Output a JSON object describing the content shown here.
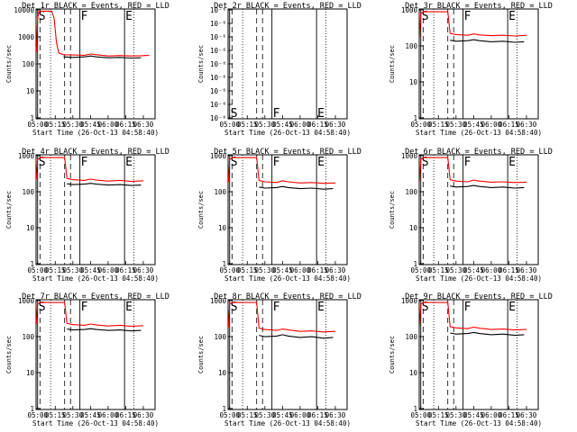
{
  "common": {
    "xlabel": "Start Time (26-Oct-13 04:58:40)",
    "ylabel": "Counts/sec",
    "black_series": "Events",
    "red_series": "LLD",
    "series_colors": {
      "events": "#000000",
      "lld": "#ff0000"
    },
    "markers": [
      {
        "label": "S",
        "time": "05:00"
      },
      {
        "label": "F",
        "time": "05:36"
      },
      {
        "label": "E",
        "time": "06:14"
      }
    ],
    "verticals": {
      "dotted": [
        "05:11",
        "06:22"
      ],
      "dashed": [
        "05:02",
        "05:23",
        "05:28"
      ]
    }
  },
  "chart_data": [
    {
      "title": "Det 1r BLACK = Events, RED = LLD",
      "type": "line",
      "yscale": "log",
      "ylim": [
        1,
        12000
      ],
      "yticks": [
        "1",
        "10",
        "100",
        "1000",
        "10000"
      ],
      "xticks": [
        "05:00",
        "05:15",
        "05:30",
        "05:45",
        "06:00",
        "06:15",
        "06:30"
      ],
      "red_x": [
        "04:59",
        "05:00",
        "05:01",
        "05:02",
        "05:05",
        "05:08",
        "05:12",
        "05:14",
        "05:16",
        "05:18",
        "05:22",
        "05:30",
        "05:40",
        "05:45",
        "05:50",
        "06:00",
        "06:10",
        "06:20",
        "06:28",
        "06:35"
      ],
      "red_y": [
        300,
        5000,
        9500,
        10000,
        10000,
        10000,
        10000,
        5500,
        700,
        280,
        240,
        235,
        230,
        255,
        240,
        215,
        225,
        215,
        220,
        230
      ],
      "black_x": [
        "05:22",
        "05:30",
        "05:40",
        "05:45",
        "05:50",
        "06:00",
        "06:10",
        "06:20",
        "06:28"
      ],
      "black_y": [
        200,
        190,
        200,
        215,
        200,
        185,
        190,
        180,
        185
      ]
    },
    {
      "title": "Det 2r BLACK = Events, RED = LLD",
      "type": "line",
      "yscale": "log",
      "ylim": [
        9e-07,
        1.2e-06
      ],
      "yticks": [
        "10⁻⁶",
        "10⁻⁶",
        "10⁻⁶",
        "10⁻⁶",
        "10⁻⁶",
        "10⁻⁶",
        "10⁻⁶",
        "10⁻⁶",
        "10⁻⁶"
      ],
      "xticks": [
        "05:00",
        "05:15",
        "05:30",
        "05:45",
        "06:00",
        "06:15",
        "06:30"
      ],
      "red_x": [],
      "red_y": [],
      "black_x": [],
      "black_y": []
    },
    {
      "title": "Det 3r BLACK = Events, RED = LLD",
      "type": "line",
      "yscale": "log",
      "ylim": [
        1,
        1200
      ],
      "yticks": [
        "1",
        "10",
        "100",
        "1000"
      ],
      "xticks": [
        "05:00",
        "05:15",
        "05:30",
        "05:45",
        "06:00",
        "06:15",
        "06:30"
      ],
      "red_x": [
        "04:59",
        "05:00",
        "05:02",
        "05:23",
        "05:25",
        "05:30",
        "05:40",
        "05:45",
        "05:50",
        "06:00",
        "06:10",
        "06:20",
        "06:30"
      ],
      "red_y": [
        200,
        900,
        1000,
        1000,
        250,
        230,
        220,
        240,
        225,
        215,
        220,
        210,
        220
      ],
      "black_x": [
        "05:25",
        "05:30",
        "05:40",
        "05:45",
        "05:50",
        "06:00",
        "06:10",
        "06:20",
        "06:28"
      ],
      "black_y": [
        160,
        150,
        155,
        165,
        155,
        145,
        150,
        140,
        145
      ]
    },
    {
      "title": "Det 4r BLACK = Events, RED = LLD",
      "type": "line",
      "yscale": "log",
      "ylim": [
        1,
        1200
      ],
      "yticks": [
        "1",
        "10",
        "100",
        "1000"
      ],
      "xticks": [
        "05:00",
        "05:15",
        "05:30",
        "05:45",
        "06:00",
        "06:15",
        "06:30"
      ],
      "red_x": [
        "04:59",
        "05:00",
        "05:02",
        "05:23",
        "05:25",
        "05:30",
        "05:40",
        "05:45",
        "05:50",
        "06:00",
        "06:10",
        "06:20",
        "06:30"
      ],
      "red_y": [
        250,
        900,
        1000,
        1000,
        260,
        240,
        230,
        250,
        235,
        220,
        230,
        215,
        225
      ],
      "black_x": [
        "05:25",
        "05:30",
        "05:40",
        "05:45",
        "05:50",
        "06:00",
        "06:10",
        "06:20",
        "06:28"
      ],
      "black_y": [
        185,
        175,
        180,
        190,
        180,
        170,
        175,
        165,
        170
      ]
    },
    {
      "title": "Det 5r BLACK = Events, RED = LLD",
      "type": "line",
      "yscale": "log",
      "ylim": [
        1,
        1200
      ],
      "yticks": [
        "1",
        "10",
        "100",
        "1000"
      ],
      "xticks": [
        "05:00",
        "05:15",
        "05:30",
        "05:45",
        "06:00",
        "06:15",
        "06:30"
      ],
      "red_x": [
        "04:59",
        "05:00",
        "05:02",
        "05:23",
        "05:25",
        "05:30",
        "05:40",
        "05:45",
        "05:50",
        "06:00",
        "06:10",
        "06:20",
        "06:30"
      ],
      "red_y": [
        200,
        900,
        1000,
        1000,
        230,
        210,
        200,
        225,
        210,
        195,
        200,
        190,
        195
      ],
      "black_x": [
        "05:25",
        "05:30",
        "05:40",
        "05:45",
        "05:50",
        "06:00",
        "06:10",
        "06:20",
        "06:28"
      ],
      "black_y": [
        150,
        140,
        145,
        155,
        145,
        135,
        140,
        130,
        135
      ]
    },
    {
      "title": "Det 6r BLACK = Events, RED = LLD",
      "type": "line",
      "yscale": "log",
      "ylim": [
        1,
        1200
      ],
      "yticks": [
        "1",
        "10",
        "100",
        "1000"
      ],
      "xticks": [
        "05:00",
        "05:15",
        "05:30",
        "05:45",
        "06:00",
        "06:15",
        "06:30"
      ],
      "red_x": [
        "04:59",
        "05:00",
        "05:02",
        "05:23",
        "05:25",
        "05:30",
        "05:40",
        "05:45",
        "05:50",
        "06:00",
        "06:10",
        "06:20",
        "06:30"
      ],
      "red_y": [
        220,
        900,
        1000,
        1000,
        240,
        220,
        210,
        235,
        220,
        205,
        210,
        200,
        205
      ],
      "black_x": [
        "05:25",
        "05:30",
        "05:40",
        "05:45",
        "05:50",
        "06:00",
        "06:10",
        "06:20",
        "06:28"
      ],
      "black_y": [
        160,
        150,
        155,
        165,
        155,
        145,
        150,
        140,
        145
      ]
    },
    {
      "title": "Det 7r BLACK = Events, RED = LLD",
      "type": "line",
      "yscale": "log",
      "ylim": [
        1,
        1200
      ],
      "yticks": [
        "1",
        "10",
        "100",
        "1000"
      ],
      "xticks": [
        "05:00",
        "05:15",
        "05:30",
        "05:45",
        "06:00",
        "06:15",
        "06:30"
      ],
      "red_x": [
        "04:59",
        "05:00",
        "05:02",
        "05:23",
        "05:25",
        "05:30",
        "05:40",
        "05:45",
        "05:50",
        "06:00",
        "06:10",
        "06:20",
        "06:30"
      ],
      "red_y": [
        250,
        900,
        1000,
        1000,
        260,
        240,
        230,
        250,
        235,
        220,
        230,
        215,
        225
      ],
      "black_x": [
        "05:25",
        "05:30",
        "05:40",
        "05:45",
        "05:50",
        "06:00",
        "06:10",
        "06:20",
        "06:28"
      ],
      "black_y": [
        180,
        170,
        175,
        185,
        175,
        165,
        170,
        160,
        165
      ]
    },
    {
      "title": "Det 8r BLACK = Events, RED = LLD",
      "type": "line",
      "yscale": "log",
      "ylim": [
        1,
        1200
      ],
      "yticks": [
        "1",
        "10",
        "100",
        "1000"
      ],
      "xticks": [
        "05:00",
        "05:15",
        "05:30",
        "05:45",
        "06:00",
        "06:15",
        "06:30"
      ],
      "red_x": [
        "04:59",
        "05:00",
        "05:02",
        "05:23",
        "05:25",
        "05:30",
        "05:40",
        "05:45",
        "05:50",
        "06:00",
        "06:10",
        "06:20",
        "06:30"
      ],
      "red_y": [
        200,
        900,
        1000,
        1000,
        190,
        175,
        165,
        180,
        170,
        155,
        160,
        150,
        155
      ],
      "black_x": [
        "05:25",
        "05:30",
        "05:40",
        "05:45",
        "05:50",
        "06:00",
        "06:10",
        "06:20",
        "06:28"
      ],
      "black_y": [
        120,
        110,
        115,
        125,
        115,
        105,
        110,
        100,
        105
      ]
    },
    {
      "title": "Det 9r BLACK = Events, RED = LLD",
      "type": "line",
      "yscale": "log",
      "ylim": [
        1,
        1200
      ],
      "yticks": [
        "1",
        "10",
        "100",
        "1000"
      ],
      "xticks": [
        "05:00",
        "05:15",
        "05:30",
        "05:45",
        "06:00",
        "06:15",
        "06:30"
      ],
      "red_x": [
        "04:59",
        "05:00",
        "05:02",
        "05:23",
        "05:25",
        "05:30",
        "05:40",
        "05:45",
        "05:50",
        "06:00",
        "06:10",
        "06:20",
        "06:30"
      ],
      "red_y": [
        220,
        900,
        1000,
        1000,
        210,
        195,
        185,
        205,
        190,
        175,
        180,
        170,
        175
      ],
      "black_x": [
        "05:25",
        "05:30",
        "05:40",
        "05:45",
        "05:50",
        "06:00",
        "06:10",
        "06:20",
        "06:28"
      ],
      "black_y": [
        140,
        130,
        135,
        145,
        135,
        125,
        130,
        120,
        125
      ]
    }
  ]
}
